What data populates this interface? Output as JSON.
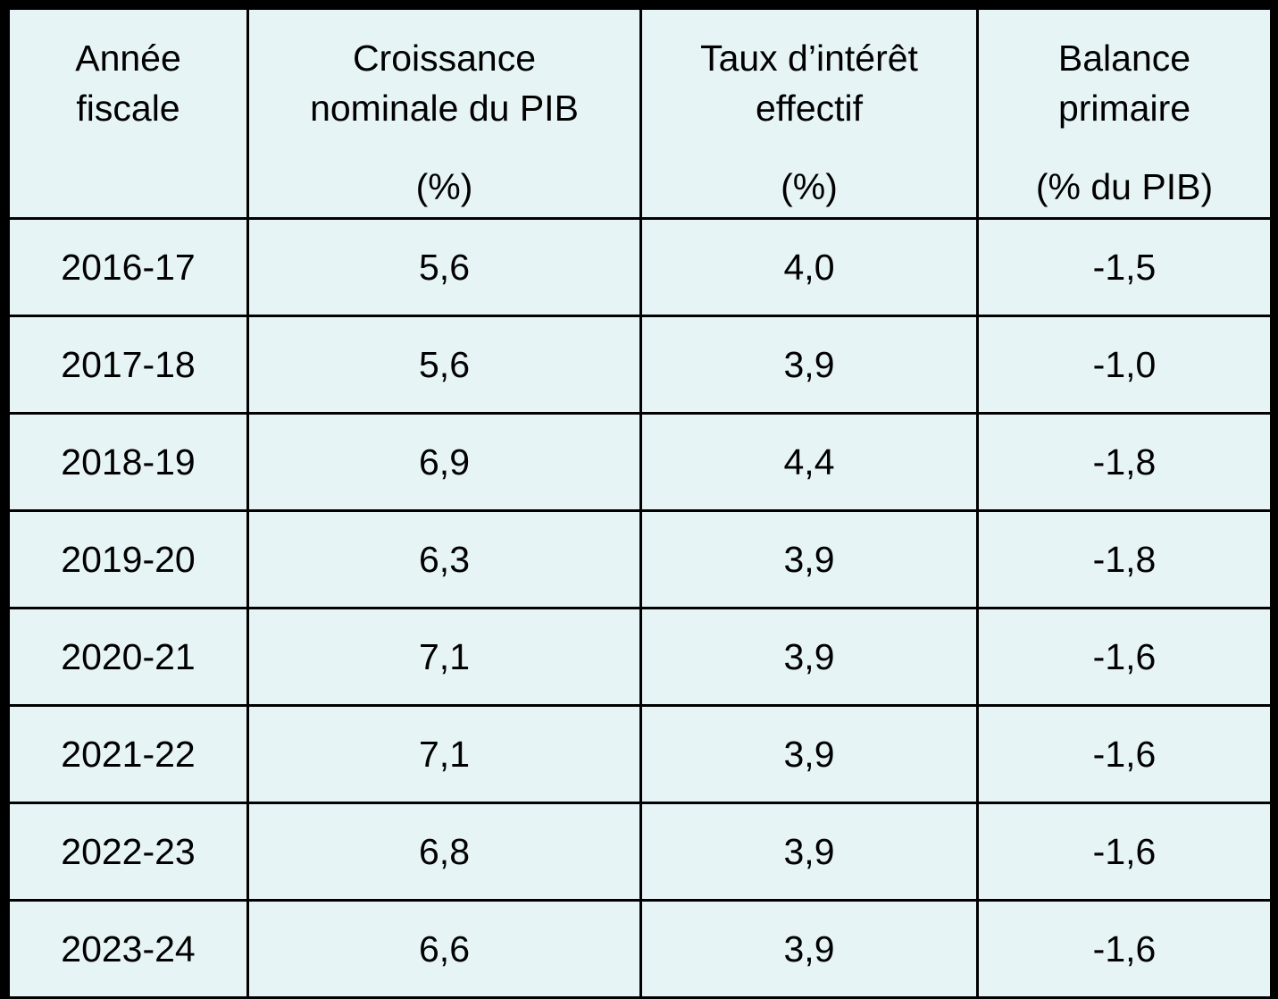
{
  "table": {
    "headers": [
      {
        "line1": "Année",
        "line2": "fiscale",
        "unit": ""
      },
      {
        "line1": "Croissance",
        "line2": "nominale du PIB",
        "unit": "(%)"
      },
      {
        "line1": "Taux d’intérêt",
        "line2": "effectif",
        "unit": "(%)"
      },
      {
        "line1": "Balance",
        "line2": "primaire",
        "unit": "(% du PIB)"
      }
    ],
    "rows": [
      {
        "year": "2016-17",
        "growth": "5,6",
        "rate": "4,0",
        "balance": "-1,5"
      },
      {
        "year": "2017-18",
        "growth": "5,6",
        "rate": "3,9",
        "balance": "-1,0"
      },
      {
        "year": "2018-19",
        "growth": "6,9",
        "rate": "4,4",
        "balance": "-1,8"
      },
      {
        "year": "2019-20",
        "growth": "6,3",
        "rate": "3,9",
        "balance": "-1,8"
      },
      {
        "year": "2020-21",
        "growth": "7,1",
        "rate": "3,9",
        "balance": "-1,6"
      },
      {
        "year": "2021-22",
        "growth": "7,1",
        "rate": "3,9",
        "balance": "-1,6"
      },
      {
        "year": "2022-23",
        "growth": "6,8",
        "rate": "3,9",
        "balance": "-1,6"
      },
      {
        "year": "2023-24",
        "growth": "6,6",
        "rate": "3,9",
        "balance": "-1,6"
      }
    ]
  },
  "colors": {
    "cell_background": "#e7f4f6",
    "border": "#000000",
    "text": "#000000"
  }
}
